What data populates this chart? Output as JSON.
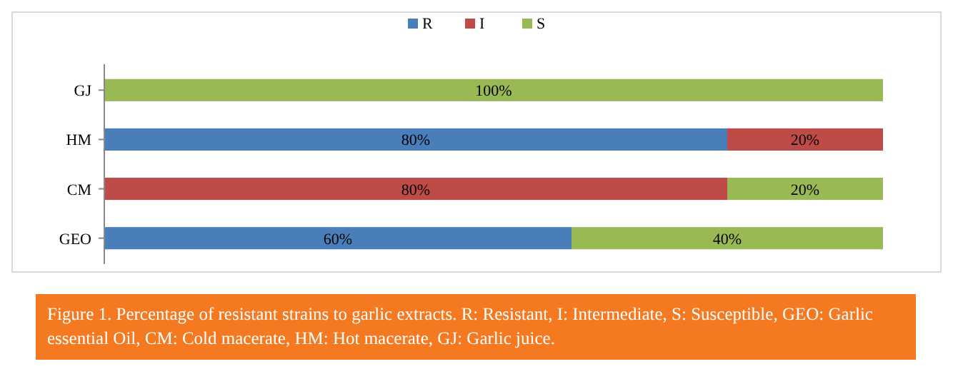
{
  "chart_data": {
    "type": "bar",
    "orientation": "horizontal",
    "stacked": true,
    "categories": [
      "GJ",
      "HM",
      "CM",
      "GEO"
    ],
    "xlim": [
      0,
      100
    ],
    "tick_labels": "y",
    "legend": "top",
    "series": [
      {
        "name": "R",
        "color": "#4a7ebb",
        "values": [
          null,
          80,
          null,
          60
        ],
        "value_labels": [
          null,
          "80%",
          null,
          "60%"
        ]
      },
      {
        "name": "I",
        "color": "#be4b48",
        "values": [
          null,
          20,
          80,
          null
        ],
        "value_labels": [
          null,
          "20%",
          "80%",
          null
        ]
      },
      {
        "name": "S",
        "color": "#98b954",
        "values": [
          100,
          null,
          20,
          40
        ],
        "value_labels": [
          "100%",
          null,
          "20%",
          "40%"
        ]
      }
    ],
    "annotations": [
      "Figure 1. Percentage of resistant strains to garlic extracts. R: Resistant, I: Intermediate, S: Susceptible, GEO: Garlic essential Oil, CM: Cold macerate, HM: Hot macerate, GJ: Garlic juice."
    ]
  }
}
